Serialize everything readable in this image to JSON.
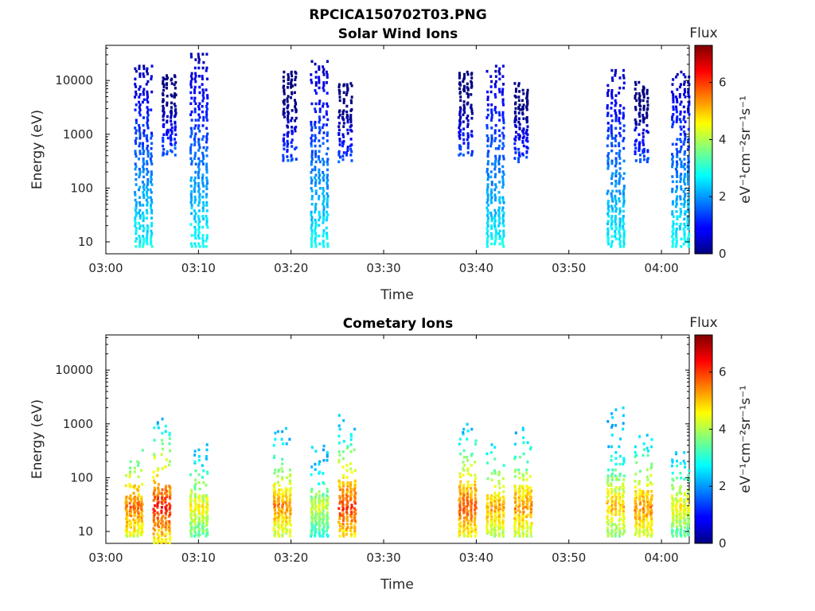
{
  "figure": {
    "title": "RPCICA150702T03.PNG",
    "colormap": "jet"
  },
  "chart_data": [
    {
      "type": "heatmap",
      "title": "Solar Wind Ions",
      "xlabel": "Time",
      "ylabel": "Energy (eV)",
      "yscale": "log",
      "xlim": [
        "03:00",
        "04:03"
      ],
      "ylim": [
        6,
        45000
      ],
      "xticks": [
        "03:00",
        "03:10",
        "03:20",
        "03:30",
        "03:40",
        "03:50",
        "04:00"
      ],
      "yticks": [
        "10",
        "100",
        "1000",
        "10000"
      ],
      "colorbar": {
        "label": "Flux",
        "unit": "eV⁻¹cm⁻²sr⁻¹s⁻¹",
        "ticks": [
          "0",
          "2",
          "4",
          "6"
        ],
        "clim": [
          0,
          7.3
        ]
      },
      "grid": false,
      "bursts": [
        {
          "t": "03:04",
          "e_min": 8,
          "e_max": 18000,
          "flux_peak": 2.8
        },
        {
          "t": "03:07",
          "e_min": 400,
          "e_max": 12000,
          "flux_peak": 1.6
        },
        {
          "t": "03:10",
          "e_min": 8,
          "e_max": 30000,
          "flux_peak": 2.8
        },
        {
          "t": "03:20",
          "e_min": 300,
          "e_max": 14000,
          "flux_peak": 1.5
        },
        {
          "t": "03:23",
          "e_min": 8,
          "e_max": 22000,
          "flux_peak": 2.8
        },
        {
          "t": "03:26",
          "e_min": 300,
          "e_max": 9000,
          "flux_peak": 1.5
        },
        {
          "t": "03:39",
          "e_min": 400,
          "e_max": 14000,
          "flux_peak": 1.5
        },
        {
          "t": "03:42",
          "e_min": 8,
          "e_max": 18000,
          "flux_peak": 2.8
        },
        {
          "t": "03:45",
          "e_min": 300,
          "e_max": 9000,
          "flux_peak": 1.5
        },
        {
          "t": "03:55",
          "e_min": 8,
          "e_max": 15000,
          "flux_peak": 2.8
        },
        {
          "t": "03:58",
          "e_min": 300,
          "e_max": 9000,
          "flux_peak": 1.5
        },
        {
          "t": "04:02",
          "e_min": 8,
          "e_max": 14000,
          "flux_peak": 2.8
        }
      ]
    },
    {
      "type": "heatmap",
      "title": "Cometary Ions",
      "xlabel": "Time",
      "ylabel": "Energy (eV)",
      "yscale": "log",
      "xlim": [
        "03:00",
        "04:03"
      ],
      "ylim": [
        6,
        45000
      ],
      "xticks": [
        "03:00",
        "03:10",
        "03:20",
        "03:30",
        "03:40",
        "03:50",
        "04:00"
      ],
      "yticks": [
        "10",
        "100",
        "1000",
        "10000"
      ],
      "colorbar": {
        "label": "Flux",
        "unit": "eV⁻¹cm⁻²sr⁻¹s⁻¹",
        "ticks": [
          "0",
          "2",
          "4",
          "6"
        ],
        "clim": [
          0,
          7.3
        ]
      },
      "grid": false,
      "bursts": [
        {
          "t": "03:03",
          "e_min": 8,
          "e_max": 350,
          "flux_peak": 5.6
        },
        {
          "t": "03:06",
          "e_min": 6,
          "e_max": 1200,
          "flux_peak": 6.2
        },
        {
          "t": "03:10",
          "e_min": 8,
          "e_max": 400,
          "flux_peak": 4.6
        },
        {
          "t": "03:19",
          "e_min": 8,
          "e_max": 800,
          "flux_peak": 5.4
        },
        {
          "t": "03:23",
          "e_min": 8,
          "e_max": 400,
          "flux_peak": 4.2
        },
        {
          "t": "03:26",
          "e_min": 8,
          "e_max": 1400,
          "flux_peak": 6.0
        },
        {
          "t": "03:39",
          "e_min": 8,
          "e_max": 1100,
          "flux_peak": 5.8
        },
        {
          "t": "03:42",
          "e_min": 8,
          "e_max": 400,
          "flux_peak": 5.2
        },
        {
          "t": "03:45",
          "e_min": 8,
          "e_max": 1000,
          "flux_peak": 5.4
        },
        {
          "t": "03:55",
          "e_min": 8,
          "e_max": 2700,
          "flux_peak": 5.0
        },
        {
          "t": "03:58",
          "e_min": 8,
          "e_max": 600,
          "flux_peak": 5.4
        },
        {
          "t": "04:02",
          "e_min": 8,
          "e_max": 300,
          "flux_peak": 4.6
        }
      ]
    }
  ]
}
